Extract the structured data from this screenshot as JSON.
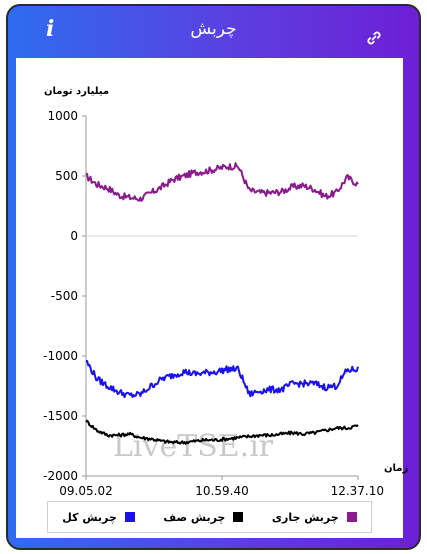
{
  "header": {
    "title": "چربش",
    "info_icon": "i",
    "link_icon_name": "link-icon"
  },
  "colors": {
    "header_gradient": [
      "#2e6cf0",
      "#6d1fd6"
    ],
    "total": "#1a10f0",
    "queue": "#000000",
    "current": "#8a1a8e"
  },
  "watermark": "LiveTSE.ir",
  "chart_data": {
    "type": "line",
    "ylabel": "میلیارد تومان",
    "xlabel": "زمان",
    "ylim": [
      -2000,
      1000
    ],
    "yticks": [
      1000,
      500,
      0,
      -500,
      -1000,
      -1500,
      -2000
    ],
    "ytick_labels": [
      "1000",
      "500",
      "0",
      "-500",
      "-1000",
      "-1500",
      "-2000"
    ],
    "xtick_labels": [
      "09.05.02",
      "10.59.40",
      "12.37.10"
    ],
    "x": [
      0,
      0.04,
      0.08,
      0.12,
      0.16,
      0.2,
      0.24,
      0.28,
      0.32,
      0.36,
      0.4,
      0.44,
      0.48,
      0.52,
      0.56,
      0.6,
      0.64,
      0.68,
      0.72,
      0.76,
      0.8,
      0.84,
      0.88,
      0.92,
      0.96,
      1.0
    ],
    "series": [
      {
        "name": "چربش جاری",
        "color": "#8a1a8e",
        "values": [
          500,
          430,
          400,
          340,
          320,
          310,
          360,
          410,
          470,
          500,
          530,
          540,
          560,
          580,
          580,
          380,
          360,
          360,
          370,
          410,
          420,
          390,
          330,
          360,
          490,
          430
        ]
      },
      {
        "name": "چربش صف",
        "color": "#000000",
        "values": [
          -1540,
          -1620,
          -1660,
          -1660,
          -1650,
          -1680,
          -1690,
          -1710,
          -1720,
          -1720,
          -1710,
          -1700,
          -1700,
          -1690,
          -1680,
          -1670,
          -1660,
          -1660,
          -1650,
          -1640,
          -1650,
          -1640,
          -1620,
          -1600,
          -1600,
          -1580
        ]
      },
      {
        "name": "چربش کل",
        "color": "#1a10f0",
        "values": [
          -1040,
          -1190,
          -1250,
          -1300,
          -1330,
          -1320,
          -1250,
          -1190,
          -1160,
          -1130,
          -1150,
          -1140,
          -1130,
          -1110,
          -1110,
          -1320,
          -1290,
          -1280,
          -1280,
          -1230,
          -1230,
          -1230,
          -1260,
          -1250,
          -1120,
          -1110
        ]
      }
    ],
    "legend": "bottom",
    "grid": false
  }
}
